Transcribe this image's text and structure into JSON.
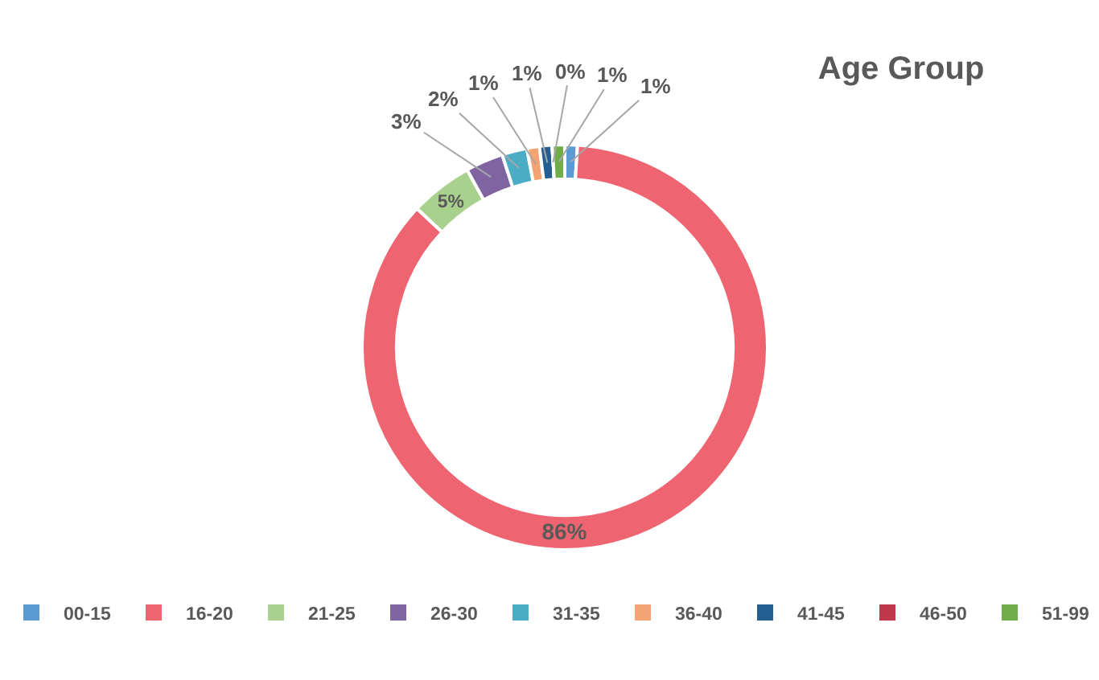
{
  "chart_data": {
    "type": "donut",
    "title": "Age Group",
    "categories": [
      "00-15",
      "16-20",
      "21-25",
      "26-30",
      "31-35",
      "36-40",
      "41-45",
      "46-50",
      "51-99"
    ],
    "values": [
      1,
      86,
      5,
      3,
      2,
      1,
      1,
      0,
      1
    ],
    "value_labels": [
      "1%",
      "86%",
      "5%",
      "3%",
      "2%",
      "1%",
      "1%",
      "0%",
      "1%"
    ],
    "colors": [
      "#5b9bd5",
      "#ee6470",
      "#a9d18e",
      "#8064a2",
      "#4bacc6",
      "#f4a372",
      "#255e91",
      "#c0394b",
      "#6ead47"
    ],
    "legend": "bottom"
  }
}
